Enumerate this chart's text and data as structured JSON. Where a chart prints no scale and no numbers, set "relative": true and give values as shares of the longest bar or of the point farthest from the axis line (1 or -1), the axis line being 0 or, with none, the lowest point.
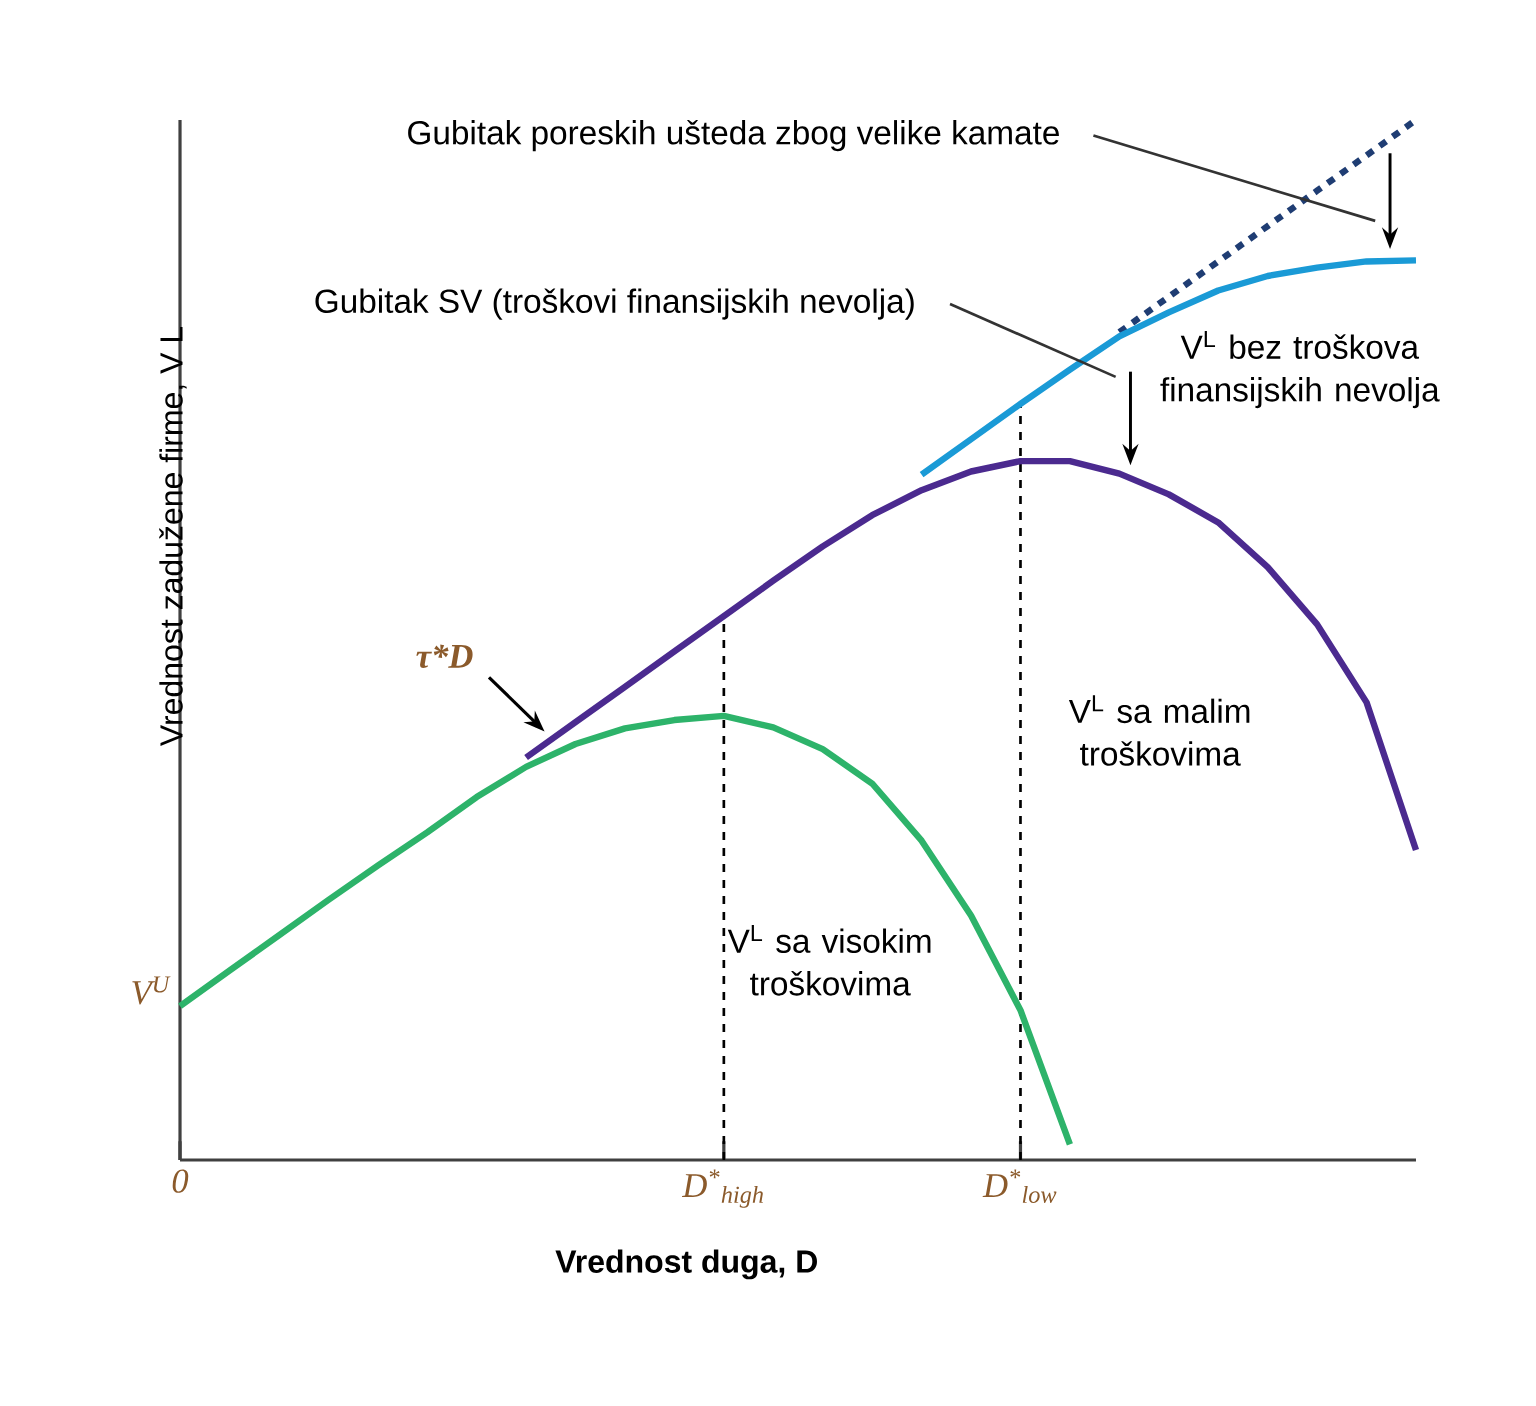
{
  "chart_data": {
    "type": "line",
    "relative": true,
    "xlabel": "Vrednost duga, D",
    "ylabel": "Vrednost zadužene firme, V L",
    "categories": [
      "0",
      null,
      null,
      null,
      null,
      null,
      null,
      null,
      null,
      null,
      null,
      "*D*$^{*}$$_{high}$",
      null,
      null,
      null,
      null,
      null,
      "*D*$^{*}$$_{low}$",
      null,
      null,
      null,
      null,
      null,
      null,
      null,
      null
    ],
    "grid": false,
    "marker": "none",
    "series": [
      {
        "color": "#1f3d73",
        "line_style": "dashed",
        "values": [
          null,
          null,
          null,
          null,
          null,
          null,
          null,
          null,
          null,
          null,
          null,
          null,
          null,
          null,
          null,
          null,
          null,
          null,
          null,
          0.796,
          0.83,
          0.864,
          0.898,
          0.932,
          0.966,
          1
        ]
      },
      {
        "name": "V$^{L}$ bez troškova finansijskih nevolja",
        "color": "#1a9ad6",
        "values": [
          null,
          null,
          null,
          null,
          null,
          null,
          null,
          null,
          null,
          null,
          null,
          null,
          null,
          null,
          null,
          0.659,
          0.693,
          0.727,
          0.76,
          0.792,
          0.815,
          0.836,
          0.85,
          0.858,
          0.864,
          0.865
        ]
      },
      {
        "name": "V$^{L}$ sa malim troškovima",
        "color": "#4b2a8f",
        "values": [
          null,
          null,
          null,
          null,
          null,
          null,
          null,
          0.387,
          0.421,
          0.455,
          0.489,
          0.523,
          0.557,
          0.59,
          0.62,
          0.644,
          0.662,
          0.672,
          0.672,
          0.66,
          0.64,
          0.613,
          0.57,
          0.515,
          0.44,
          0.298
        ]
      },
      {
        "name": "V$^{L}$ sa visokim troškovima",
        "color": "#2db36a",
        "values": [
          0.148,
          0.182,
          0.216,
          0.25,
          0.283,
          0.315,
          0.349,
          0.378,
          0.4,
          0.415,
          0.423,
          0.427,
          0.416,
          0.395,
          0.362,
          0.307,
          0.235,
          0.144,
          0.015,
          null,
          null,
          null,
          null,
          null,
          null,
          null
        ]
      }
    ],
    "ref_lines": [
      {
        "axis": "x",
        "value": "*D*$^{*}$$_{high}$",
        "line_style": "dashed",
        "color": "#000000"
      },
      {
        "axis": "x",
        "value": "*D*$^{*}$$_{low}$",
        "line_style": "dashed",
        "color": "#000000"
      }
    ],
    "annotations": [
      "Gubitak poreskih ušteda zbog velike kamate",
      "Gubitak SV (troškovi finansijskih nevolja)",
      "τ*D",
      "V$^{U}$"
    ]
  }
}
